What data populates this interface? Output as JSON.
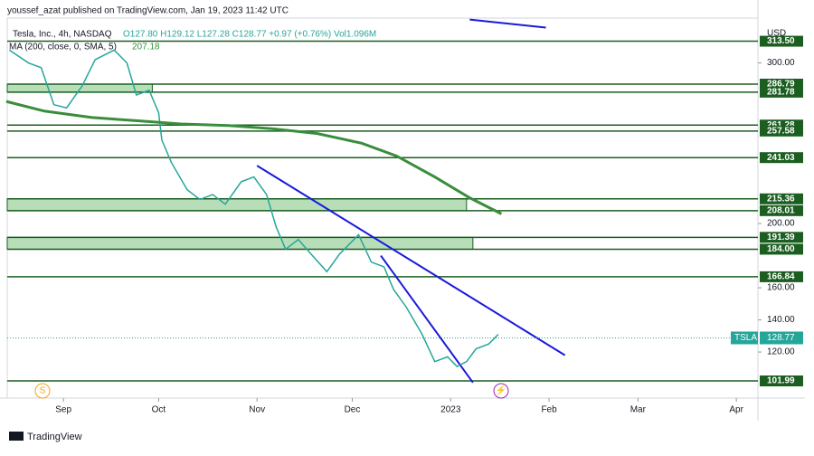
{
  "header": {
    "publisher": "youssef_azat published on TradingView.com, Jan 19, 2023 11:42 UTC",
    "footer": "TradingView"
  },
  "chart_data": {
    "type": "line",
    "title": "Tesla, Inc., 4h, NASDAQ",
    "subtitle": "O127.80 H129.12 L127.28 C128.77 +0.97 (+0.76%) Vol1.096M",
    "currency": "USD",
    "symbol": "TSLA",
    "last_price": {
      "value": 128.77,
      "label": "128.77"
    },
    "x": [
      -17,
      -11,
      -7,
      -3,
      1,
      6,
      10,
      16,
      20,
      23,
      27,
      30,
      31,
      34,
      39,
      43,
      47,
      51,
      56,
      60,
      64,
      67,
      70,
      74,
      78,
      83,
      87,
      93,
      97,
      101,
      104,
      108,
      113,
      117,
      121,
      124,
      127,
      130,
      134,
      137
    ],
    "series": [
      {
        "name": "TSLA",
        "color": "#26a69a",
        "values": [
          308,
          300,
          297,
          274,
          272,
          286,
          302,
          308,
          300,
          280,
          283,
          269,
          252,
          238,
          221,
          215,
          218,
          212,
          226,
          229,
          218,
          198,
          184,
          190,
          181,
          170,
          181,
          193,
          176,
          173,
          159,
          148,
          131,
          114,
          117,
          111,
          114,
          122,
          125,
          131
        ]
      },
      {
        "name": "MA (200, close, 0, SMA, 5)",
        "value_label": "207.18",
        "color": "#388e3c",
        "x": [
          -18,
          -6,
          9,
          23,
          37,
          52,
          66,
          80,
          94,
          105,
          117,
          128,
          138
        ],
        "values": [
          276,
          270,
          266,
          264,
          262,
          261,
          259,
          256,
          250,
          242,
          229,
          216,
          206
        ]
      }
    ],
    "levels": [
      {
        "value": 313.5,
        "label": "313.50"
      },
      {
        "value": 286.79,
        "label": "286.79"
      },
      {
        "value": 281.78,
        "label": "281.78"
      },
      {
        "value": 261.28,
        "label": "261.28"
      },
      {
        "value": 257.58,
        "label": "257.58"
      },
      {
        "value": 241.03,
        "label": "241.03"
      },
      {
        "value": 215.36,
        "label": "215.36"
      },
      {
        "value": 208.01,
        "label": "208.01"
      },
      {
        "value": 191.39,
        "label": "191.39"
      },
      {
        "value": 184,
        "label": "184.00"
      },
      {
        "value": 166.84,
        "label": "166.84"
      },
      {
        "value": 101.99,
        "label": "101.99"
      }
    ],
    "zones": [
      {
        "low": 281.78,
        "high": 286.79,
        "end": 28
      },
      {
        "low": 208.01,
        "high": 215.36,
        "end": 127
      },
      {
        "low": 184,
        "high": 191.39,
        "end": 129
      }
    ],
    "trendlines": [
      {
        "x": [
          61,
          158
        ],
        "values": [
          236,
          118
        ],
        "color": "#1a1adb"
      },
      {
        "x": [
          100,
          129
        ],
        "values": [
          180,
          101
        ],
        "color": "#1a1adb"
      },
      {
        "x": [
          128,
          152
        ],
        "values": [
          327,
          322
        ],
        "color": "#1a1adb"
      }
    ],
    "xlim": [
      -17.7,
      218.8
    ],
    "ylim": [
      91.3,
      327.9
    ],
    "xticks": [
      {
        "value": 0,
        "label": "Sep"
      },
      {
        "value": 30,
        "label": "Oct"
      },
      {
        "value": 61,
        "label": "Nov"
      },
      {
        "value": 91,
        "label": "Dec"
      },
      {
        "value": 122,
        "label": "2023"
      },
      {
        "value": 153,
        "label": "Feb"
      },
      {
        "value": 181,
        "label": "Mar"
      },
      {
        "value": 212,
        "label": "Apr"
      }
    ],
    "yticks": [
      {
        "value": 120,
        "label": "120.00"
      },
      {
        "value": 140,
        "label": "140.00"
      },
      {
        "value": 160,
        "label": "160.00"
      },
      {
        "value": 200,
        "label": "200.00"
      },
      {
        "value": 300,
        "label": "300.00"
      }
    ]
  }
}
